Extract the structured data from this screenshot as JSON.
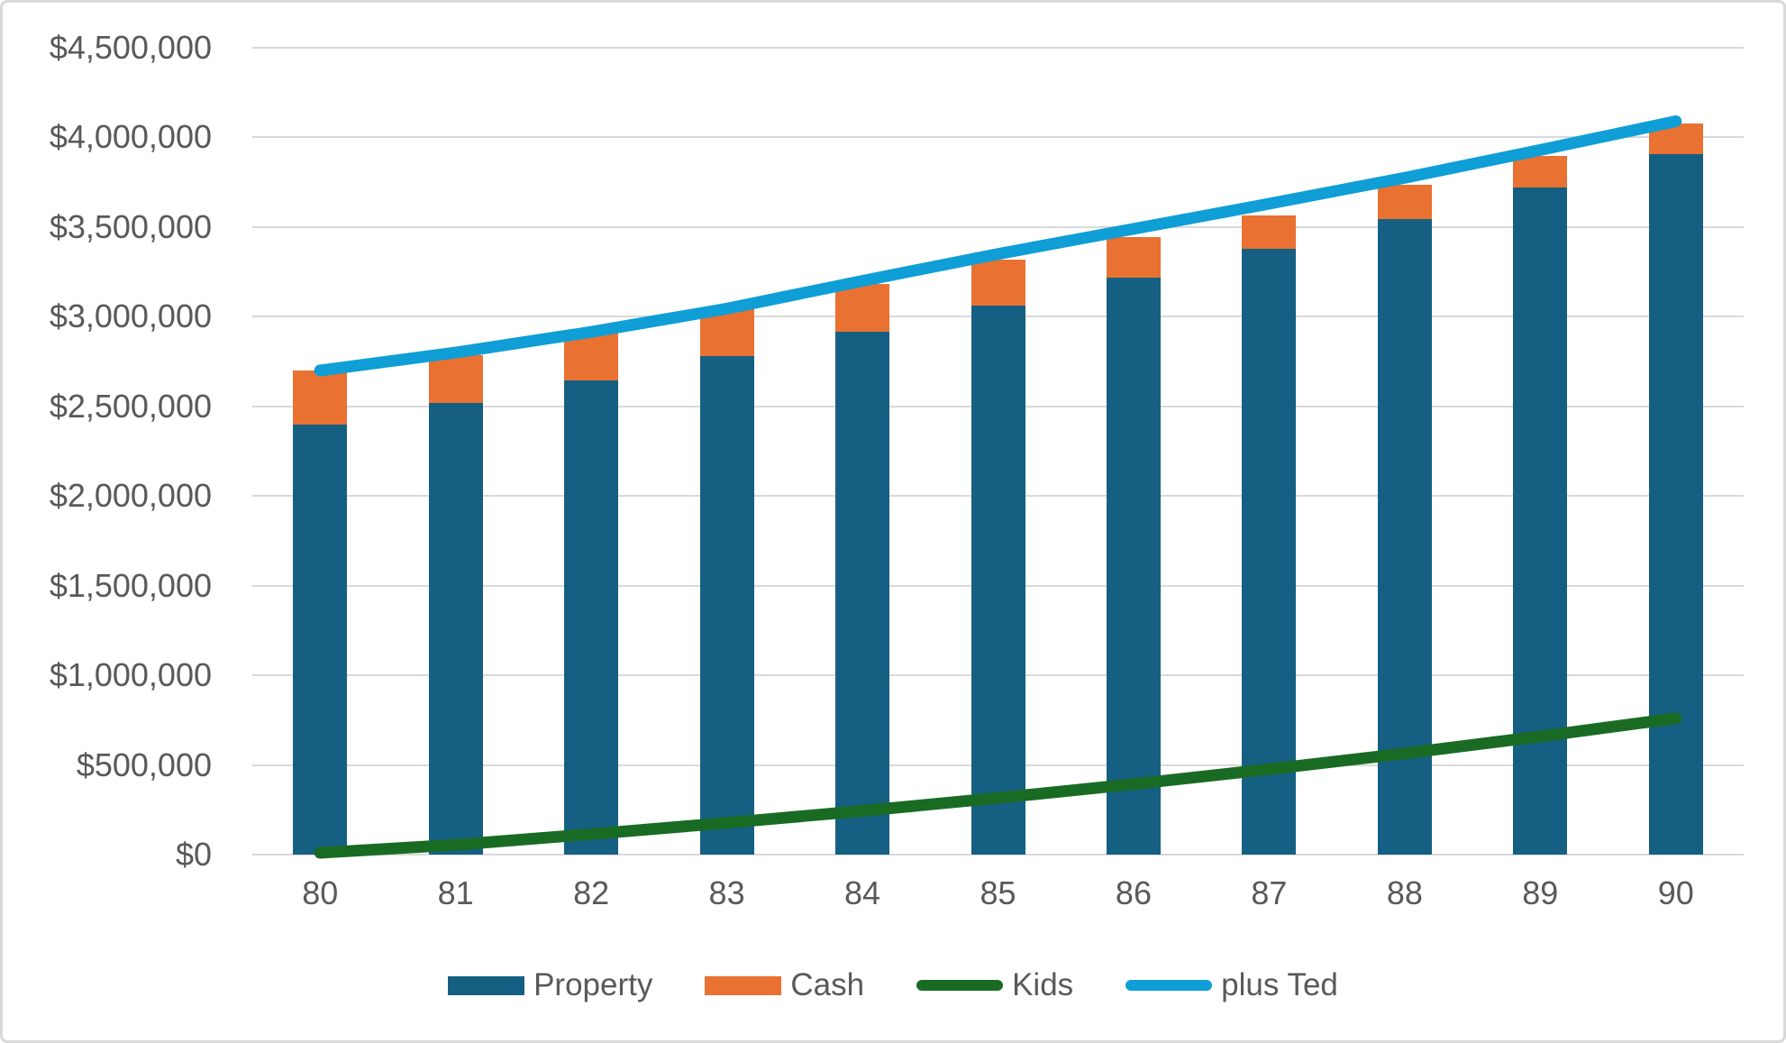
{
  "chart_data": {
    "type": "bar",
    "subtype": "stacked-bars-with-line-overlays",
    "title": "",
    "xlabel": "",
    "ylabel": "",
    "categories": [
      "80",
      "81",
      "82",
      "83",
      "84",
      "85",
      "86",
      "87",
      "88",
      "89",
      "90"
    ],
    "series": [
      {
        "name": "Property",
        "type": "bar",
        "stack": "assets",
        "color": "#156082",
        "values": [
          2400000,
          2520000,
          2646000,
          2778000,
          2917000,
          3063000,
          3216000,
          3377000,
          3546000,
          3723000,
          3909000
        ]
      },
      {
        "name": "Cash",
        "type": "bar",
        "stack": "assets",
        "color": "#E97132",
        "values": [
          300000,
          265000,
          270000,
          265000,
          265000,
          255000,
          230000,
          190000,
          190000,
          175000,
          170000
        ]
      },
      {
        "name": "Kids",
        "type": "line",
        "color": "#196B24",
        "values": [
          10000,
          55000,
          114000,
          177000,
          244000,
          316000,
          393000,
          476000,
          564000,
          659000,
          760000
        ]
      },
      {
        "name": "plus Ted",
        "type": "line",
        "color": "#0F9ED5",
        "values": [
          2700000,
          2800000,
          2915000,
          3045000,
          3200000,
          3350000,
          3490000,
          3630000,
          3775000,
          3930000,
          4090000
        ]
      }
    ],
    "ylim": [
      0,
      4500000
    ],
    "y_tick_step": 500000,
    "y_tick_labels": [
      "$0",
      "$500,000",
      "$1,000,000",
      "$1,500,000",
      "$2,000,000",
      "$2,500,000",
      "$3,000,000",
      "$3,500,000",
      "$4,000,000",
      "$4,500,000"
    ],
    "grid": "horizontal",
    "legend_position": "bottom"
  },
  "legend": {
    "items": [
      {
        "label": "Property",
        "swatch": "rect",
        "color": "#156082"
      },
      {
        "label": "Cash",
        "swatch": "rect",
        "color": "#E97132"
      },
      {
        "label": "Kids",
        "swatch": "line",
        "color": "#196B24"
      },
      {
        "label": "plus Ted",
        "swatch": "line",
        "color": "#0F9ED5"
      }
    ]
  },
  "colors": {
    "background": "#FFFFFF",
    "border": "#D9D9D9",
    "grid": "#D9D9D9",
    "axis_text": "#595959"
  }
}
